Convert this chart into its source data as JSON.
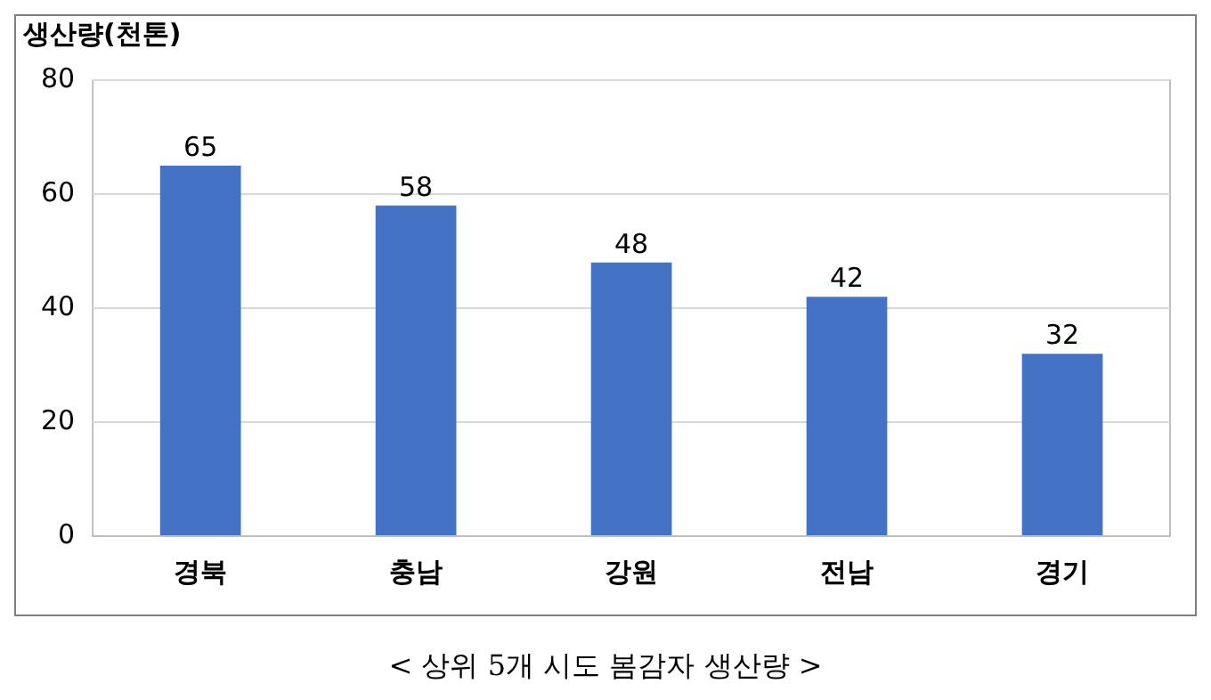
{
  "chart_data": {
    "type": "bar",
    "ylabel": "생산량(천톤)",
    "categories": [
      "경북",
      "충남",
      "강원",
      "전남",
      "경기"
    ],
    "values": [
      65,
      58,
      48,
      42,
      32
    ],
    "color": "#4472c4",
    "ylim": [
      0,
      80
    ],
    "yticks": [
      0,
      20,
      40,
      60,
      80
    ],
    "grid": "y",
    "data_labels": true,
    "annotations": [
      "< 상위 5개 시도 봄감자 생산량 >"
    ]
  }
}
